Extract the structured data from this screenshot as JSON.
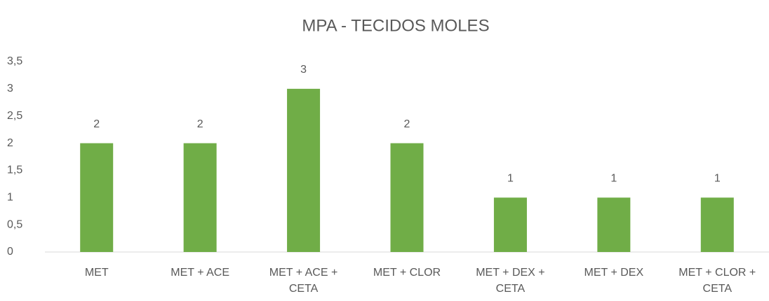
{
  "chart_data": {
    "type": "bar",
    "title": "MPA - TECIDOS MOLES",
    "categories": [
      "MET",
      "MET + ACE",
      "MET + ACE + CETA",
      "MET + CLOR",
      "MET + DEX + CETA",
      "MET + DEX",
      "MET + CLOR + CETA"
    ],
    "values": [
      2,
      2,
      3,
      2,
      1,
      1,
      1
    ],
    "color": "#70ad47",
    "ylim": [
      0,
      3.5
    ],
    "yticks": [
      0,
      {
        "value": 0.5,
        "label": "0,5"
      },
      1,
      {
        "value": 1.5,
        "label": "1,5"
      },
      2,
      {
        "value": 2.5,
        "label": "2,5"
      },
      3,
      {
        "value": 3.5,
        "label": "3,5"
      }
    ],
    "grid": false
  }
}
